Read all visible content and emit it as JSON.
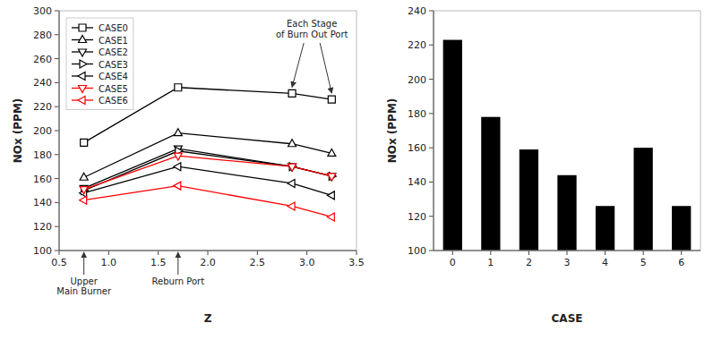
{
  "chart_data": [
    {
      "type": "line",
      "x_label": "Z",
      "y_label": "NOx (PPM)",
      "x": [
        0.75,
        1.7,
        2.85,
        3.25
      ],
      "series": [
        {
          "name": "CASE0",
          "color": "black",
          "marker": "square",
          "values": [
            190,
            236,
            231,
            226
          ]
        },
        {
          "name": "CASE1",
          "color": "black",
          "marker": "triangle-up",
          "values": [
            161,
            198,
            189,
            181
          ]
        },
        {
          "name": "CASE2",
          "color": "black",
          "marker": "triangle-down",
          "values": [
            152,
            185,
            170,
            162
          ]
        },
        {
          "name": "CASE3",
          "color": "black",
          "marker": "triangle-right",
          "values": [
            150,
            183,
            170,
            162
          ]
        },
        {
          "name": "CASE4",
          "color": "black",
          "marker": "triangle-left",
          "values": [
            148,
            170,
            156,
            146
          ]
        },
        {
          "name": "CASE5",
          "color": "red",
          "marker": "triangle-down",
          "values": [
            151,
            179,
            170,
            162
          ]
        },
        {
          "name": "CASE6",
          "color": "red",
          "marker": "triangle-left",
          "values": [
            142,
            154,
            137,
            128
          ]
        }
      ],
      "xlim": [
        0.5,
        3.5
      ],
      "ylim": [
        100,
        300
      ],
      "xticks": [
        0.5,
        {
          "value": 1,
          "label": "1.0"
        },
        1.5,
        {
          "value": 2,
          "label": "2.0"
        },
        2.5,
        {
          "value": 3,
          "label": "3.0"
        },
        3.5
      ],
      "yticks": [
        100,
        120,
        140,
        160,
        180,
        200,
        220,
        240,
        260,
        280,
        300
      ],
      "legend": "upper-left",
      "grid": false,
      "annotations": [
        {
          "text": "Upper\nMain Burner",
          "x": 0.75
        },
        {
          "text": "Reburn Port",
          "x": 1.7
        },
        {
          "text": "Each Stage\nof Burn Out Port",
          "x": [
            2.85,
            3.25
          ]
        }
      ]
    },
    {
      "type": "bar",
      "x_label": "CASE",
      "y_label": "NOx (PPM)",
      "categories": [
        "0",
        "1",
        "2",
        "3",
        "4",
        "5",
        "6"
      ],
      "values": [
        223,
        178,
        159,
        144,
        126,
        160,
        126
      ],
      "color": "black",
      "ylim": [
        100,
        240
      ],
      "yticks": [
        100,
        120,
        140,
        160,
        180,
        200,
        220,
        240
      ],
      "grid": false
    }
  ]
}
